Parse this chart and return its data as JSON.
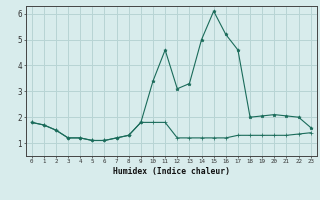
{
  "xlabel": "Humidex (Indice chaleur)",
  "x_values": [
    0,
    1,
    2,
    3,
    4,
    5,
    6,
    7,
    8,
    9,
    10,
    11,
    12,
    13,
    14,
    15,
    16,
    17,
    18,
    19,
    20,
    21,
    22,
    23
  ],
  "line1_y": [
    1.8,
    1.7,
    1.5,
    1.2,
    1.2,
    1.1,
    1.1,
    1.2,
    1.3,
    1.8,
    3.4,
    4.6,
    3.1,
    3.3,
    5.0,
    6.1,
    5.2,
    4.6,
    2.0,
    2.05,
    2.1,
    2.05,
    2.0,
    1.6
  ],
  "line2_y": [
    1.8,
    1.7,
    1.5,
    1.2,
    1.2,
    1.1,
    1.1,
    1.2,
    1.3,
    1.8,
    1.8,
    1.8,
    1.2,
    1.2,
    1.2,
    1.2,
    1.2,
    1.3,
    1.3,
    1.3,
    1.3,
    1.3,
    1.35,
    1.4
  ],
  "line_color": "#1a6b5a",
  "bg_color": "#d8ecec",
  "grid_color": "#b8d4d4",
  "ylim": [
    0.5,
    6.3
  ],
  "xlim": [
    -0.5,
    23.5
  ],
  "yticks": [
    1,
    2,
    3,
    4,
    5,
    6
  ],
  "xticks": [
    0,
    1,
    2,
    3,
    4,
    5,
    6,
    7,
    8,
    9,
    10,
    11,
    12,
    13,
    14,
    15,
    16,
    17,
    18,
    19,
    20,
    21,
    22,
    23
  ]
}
